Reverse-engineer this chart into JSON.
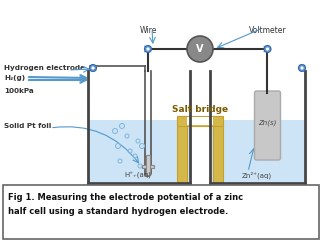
{
  "caption_line1": "Fig 1. Measuring the electrode potential of a zinc",
  "caption_line2": "half cell using a standard hydrogen electrode.",
  "background_color": "#ffffff",
  "fig_width": 3.22,
  "fig_height": 2.41,
  "dpi": 100,
  "label_hydrogen_electrode": "Hydrogen electrode",
  "label_h2g": "H₂(g)",
  "label_100kpa": "100kPa",
  "label_solid_pt": "Solid Pt foil",
  "label_wire": "Wire",
  "label_voltmeter": "Voltmeter",
  "label_salt_bridge": "Salt bridge",
  "label_hplus": "H⁺₊(aq)",
  "label_zn2plus": "Zn²⁺(aq)",
  "label_zns": "Zn(s)",
  "solution_color": "#cce4f5",
  "tank_edge": "#444444",
  "salt_bridge_fill": "#d4b84a",
  "salt_bridge_edge": "#c8a030",
  "zinc_fill": "#c8c8c8",
  "zinc_edge": "#aaaaaa",
  "wire_color": "#333333",
  "arrow_color": "#5599cc",
  "bubble_color": "#88bbdd",
  "voltmeter_fill": "#888888",
  "voltmeter_edge": "#555555",
  "conn_fill": "#6699cc",
  "conn_edge": "#3366aa",
  "pt_fill": "#cccccc",
  "pt_edge": "#888888"
}
